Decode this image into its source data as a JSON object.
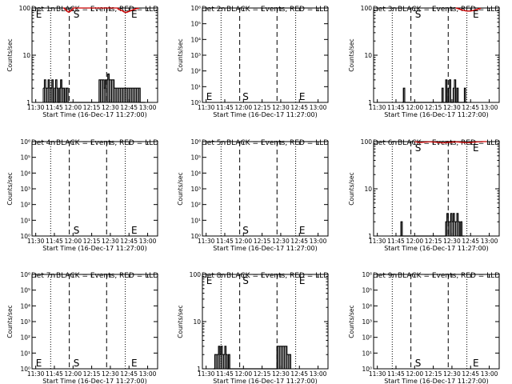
{
  "panels": [
    {
      "title": "Det 1r BLACK = Events, RED = LLD",
      "ylabel": "Counts/sec",
      "xlabel": "Start Time (16-Dec-17 11:27:00)",
      "ytick_labels": [
        "1",
        "10",
        "100"
      ],
      "xtick_labels": [
        "11:30",
        "11:45",
        "12:00",
        "12:15",
        "12:30",
        "12:45",
        "13:00"
      ],
      "markers": [
        "E",
        "S",
        "E"
      ]
    },
    {
      "title": "Det 2r BLACK = Events, RED = LLD",
      "ylabel": "Counts/sec",
      "xlabel": "Start Time (16-Dec-17 11:27:00)",
      "ytick_labels": [
        "10⁰",
        "10¹",
        "10²",
        "10³",
        "10⁴",
        "10⁵",
        "10⁶"
      ],
      "xtick_labels": [
        "11:30",
        "11:45",
        "12:00",
        "12:15",
        "12:30",
        "12:45",
        "13:00"
      ],
      "markers": [
        "E",
        "S",
        "E"
      ]
    },
    {
      "title": "Det 3r BLACK = Events, RED = LLD",
      "ylabel": "Counts/sec",
      "xlabel": "Start Time (16-Dec-17 11:27:00)",
      "ytick_labels": [
        "1",
        "10",
        "100"
      ],
      "xtick_labels": [
        "11:30",
        "11:45",
        "12:00",
        "12:15",
        "12:30",
        "12:45",
        "13:00"
      ],
      "markers": [
        "S",
        "E"
      ]
    },
    {
      "title": "Det 4r BLACK = Events, RED = LLD",
      "ylabel": "Counts/sec",
      "xlabel": "Start Time (16-Dec-17 11:27:00)",
      "ytick_labels": [
        "10⁰",
        "10¹",
        "10²",
        "10³",
        "10⁴",
        "10⁵",
        "10⁶"
      ],
      "xtick_labels": [
        "11:30",
        "11:45",
        "12:00",
        "12:15",
        "12:30",
        "12:45",
        "13:00"
      ],
      "markers": [
        "S",
        "E"
      ]
    },
    {
      "title": "Det 5r BLACK = Events, RED = LLD",
      "ylabel": "Counts/sec",
      "xlabel": "Start Time (16-Dec-17 11:27:00)",
      "ytick_labels": [
        "10⁰",
        "10¹",
        "10²",
        "10³",
        "10⁴",
        "10⁵",
        "10⁶"
      ],
      "xtick_labels": [
        "11:30",
        "11:45",
        "12:00",
        "12:15",
        "12:30",
        "12:45",
        "13:00"
      ],
      "markers": [
        "S",
        "E"
      ]
    },
    {
      "title": "Det 6r BLACK = Events, RED = LLD",
      "ylabel": "Counts/sec",
      "xlabel": "Start Time (16-Dec-17 11:27:00)",
      "ytick_labels": [
        "1",
        "10",
        "100"
      ],
      "xtick_labels": [
        "11:30",
        "11:45",
        "12:00",
        "12:15",
        "12:30",
        "12:45",
        "13:00"
      ],
      "markers": [
        "S",
        "E"
      ]
    },
    {
      "title": "Det 7r BLACK = Events, RED = LLD",
      "ylabel": "Counts/sec",
      "xlabel": "Start Time (16-Dec-17 11:27:00)",
      "ytick_labels": [
        "10⁰",
        "10¹",
        "10²",
        "10³",
        "10⁴",
        "10⁵",
        "10⁶"
      ],
      "xtick_labels": [
        "11:30",
        "11:45",
        "12:00",
        "12:15",
        "12:30",
        "12:45",
        "13:00"
      ],
      "markers": [
        "E",
        "S",
        "E"
      ]
    },
    {
      "title": "Det 8r BLACK = Events, RED = LLD",
      "ylabel": "Counts/sec",
      "xlabel": "Start Time (16-Dec-17 11:27:00)",
      "ytick_labels": [
        "1",
        "10",
        "100"
      ],
      "xtick_labels": [
        "11:30",
        "11:45",
        "12:00",
        "12:15",
        "12:30",
        "12:45",
        "13:00"
      ],
      "markers": [
        "E",
        "S",
        "E"
      ]
    },
    {
      "title": "Det 9r BLACK = Events, RED = LLD",
      "ylabel": "Counts/sec",
      "xlabel": "Start Time (16-Dec-17 11:27:00)",
      "ytick_labels": [
        "10⁰",
        "10¹",
        "10²",
        "10³",
        "10⁴",
        "10⁵",
        "10⁶"
      ],
      "xtick_labels": [
        "11:30",
        "11:45",
        "12:00",
        "12:15",
        "12:30",
        "12:45",
        "13:00"
      ],
      "markers": [
        "S",
        "E"
      ]
    }
  ],
  "chart_data": [
    {
      "type": "line",
      "title": "Det 1r BLACK = Events, RED = LLD",
      "xlabel": "Start Time (16-Dec-17 11:27:00)",
      "ylabel": "Counts/sec",
      "xlim": [
        "11:27",
        "13:08"
      ],
      "ylim": [
        1,
        100
      ],
      "yscale": "log",
      "series": [
        {
          "color": "#000000",
          "x": [
            "11:36",
            "11:37",
            "11:38",
            "11:39",
            "11:40",
            "11:41",
            "11:42",
            "11:43",
            "11:44",
            "11:45",
            "11:46",
            "11:47",
            "11:48",
            "11:49",
            "11:50",
            "11:51",
            "11:52",
            "11:53",
            "11:54",
            "11:55",
            "11:56",
            "11:57",
            "11:58",
            "11:59",
            "12:00",
            "12:01",
            "12:02",
            "12:03",
            "12:04",
            "12:05",
            "12:06",
            "12:07",
            "12:08",
            "12:09",
            "12:10",
            "12:11",
            "12:12",
            "12:13",
            "12:14",
            "12:15",
            "12:16",
            "12:17",
            "12:18",
            "12:19",
            "12:20",
            "12:21",
            "12:22",
            "12:23",
            "12:24",
            "12:25",
            "12:26",
            "12:27",
            "12:28",
            "12:29",
            "12:30",
            "12:31",
            "12:32",
            "12:33",
            "12:34",
            "12:35",
            "12:36",
            "12:37",
            "12:38",
            "12:39",
            "12:40",
            "12:41",
            "12:42",
            "12:43",
            "12:44",
            "12:45",
            "12:46",
            "12:47",
            "12:48",
            "12:49",
            "12:50",
            "12:51",
            "12:52",
            "12:53",
            "12:54",
            "12:55",
            "12:56",
            "12:57",
            "12:58"
          ],
          "y": [
            2,
            3,
            2,
            2,
            3,
            2,
            2,
            3,
            1,
            2,
            3,
            2,
            1,
            2,
            3,
            2,
            2,
            1,
            2,
            2,
            1,
            1,
            1,
            1,
            1,
            1,
            1,
            1,
            1,
            1,
            1,
            1,
            1,
            1,
            1,
            1,
            1,
            1,
            1,
            1,
            1,
            1,
            1,
            1,
            1,
            3,
            3,
            3,
            3,
            2,
            3,
            3,
            4,
            3,
            3,
            3,
            3,
            2,
            2,
            2,
            2,
            2,
            2,
            2,
            2,
            2,
            2,
            2,
            2,
            2,
            2,
            2,
            2,
            2,
            2,
            2,
            2,
            2,
            1,
            1,
            1,
            1,
            1
          ]
        },
        {
          "color": "#cc0000",
          "x": [
            "11:52",
            "11:53",
            "11:54",
            "11:55",
            "11:56",
            "11:57",
            "11:58",
            "11:59",
            "12:00",
            "12:35",
            "12:36",
            "12:37",
            "12:38",
            "12:39",
            "12:40",
            "12:41",
            "12:42",
            "12:43",
            "12:44",
            "12:45",
            "12:46",
            "12:47",
            "12:48",
            "12:49",
            "12:50",
            "12:51",
            "12:52",
            "12:53"
          ],
          "y": [
            100,
            95,
            90,
            85,
            82,
            85,
            88,
            93,
            100,
            100,
            95,
            92,
            90,
            88,
            85,
            82,
            80,
            82,
            84,
            86,
            88,
            90,
            92,
            94,
            96,
            98,
            99,
            100
          ]
        }
      ]
    },
    {
      "type": "line",
      "title": "Det 2r BLACK = Events, RED = LLD",
      "xlabel": "Start Time (16-Dec-17 11:27:00)",
      "ylabel": "Counts/sec",
      "xlim": [
        "11:27",
        "13:08"
      ],
      "ylim": [
        1,
        1000000
      ],
      "yscale": "log",
      "series": []
    },
    {
      "type": "line",
      "title": "Det 3r BLACK = Events, RED = LLD",
      "xlabel": "Start Time (16-Dec-17 11:27:00)",
      "ylabel": "Counts/sec",
      "xlim": [
        "11:27",
        "13:08"
      ],
      "ylim": [
        1,
        100
      ],
      "yscale": "log",
      "series": [
        {
          "color": "#000000",
          "x": [
            "11:50",
            "11:51",
            "11:52",
            "11:53",
            "11:54",
            "11:55",
            "11:56",
            "11:57",
            "11:58",
            "11:59",
            "12:00",
            "12:01",
            "12:02",
            "12:03",
            "12:04",
            "12:05",
            "12:06",
            "12:07",
            "12:08",
            "12:09",
            "12:10",
            "12:11",
            "12:12",
            "12:13",
            "12:14",
            "12:15",
            "12:16",
            "12:17",
            "12:18",
            "12:19",
            "12:20",
            "12:21",
            "12:22",
            "12:23",
            "12:24",
            "12:25",
            "12:26",
            "12:27",
            "12:28",
            "12:29",
            "12:30",
            "12:31",
            "12:32",
            "12:33",
            "12:34",
            "12:35",
            "12:36",
            "12:37",
            "12:38",
            "12:39",
            "12:40",
            "12:41",
            "12:42"
          ],
          "y": [
            1,
            2,
            1,
            1,
            1,
            1,
            1,
            1,
            1,
            1,
            1,
            1,
            1,
            1,
            1,
            1,
            1,
            1,
            1,
            1,
            1,
            1,
            1,
            1,
            1,
            1,
            1,
            1,
            1,
            1,
            1,
            1,
            2,
            1,
            1,
            3,
            1,
            2,
            3,
            1,
            1,
            2,
            3,
            1,
            2,
            1,
            1,
            1,
            1,
            1,
            2,
            1,
            1
          ]
        },
        {
          "color": "#cc0000",
          "x": [
            "12:33",
            "12:34",
            "12:35",
            "12:36",
            "12:37",
            "12:38",
            "12:39",
            "12:40",
            "12:41",
            "12:42",
            "12:43",
            "12:44",
            "12:45",
            "12:46",
            "12:47",
            "12:48",
            "12:49",
            "12:50",
            "12:51",
            "12:52",
            "12:53"
          ],
          "y": [
            100,
            98,
            96,
            94,
            92,
            90,
            89,
            88,
            87,
            86,
            86,
            86,
            87,
            88,
            89,
            90,
            92,
            94,
            96,
            98,
            100
          ]
        }
      ]
    },
    {
      "type": "line",
      "title": "Det 4r BLACK = Events, RED = LLD",
      "xlabel": "Start Time (16-Dec-17 11:27:00)",
      "ylabel": "Counts/sec",
      "xlim": [
        "11:27",
        "13:08"
      ],
      "ylim": [
        1,
        1000000
      ],
      "yscale": "log",
      "series": []
    },
    {
      "type": "line",
      "title": "Det 5r BLACK = Events, RED = LLD",
      "xlabel": "Start Time (16-Dec-17 11:27:00)",
      "ylabel": "Counts/sec",
      "xlim": [
        "11:27",
        "13:08"
      ],
      "ylim": [
        1,
        1000000
      ],
      "yscale": "log",
      "series": []
    },
    {
      "type": "line",
      "title": "Det 6r BLACK = Events, RED = LLD",
      "xlabel": "Start Time (16-Dec-17 11:27:00)",
      "ylabel": "Counts/sec",
      "xlim": [
        "11:27",
        "13:08"
      ],
      "ylim": [
        1,
        100
      ],
      "yscale": "log",
      "series": [
        {
          "color": "#000000",
          "x": [
            "11:48",
            "11:49",
            "11:50",
            "11:51",
            "11:52",
            "11:53",
            "11:54",
            "11:55",
            "11:56",
            "11:57",
            "11:58",
            "11:59",
            "12:00",
            "12:01",
            "12:02",
            "12:03",
            "12:04",
            "12:05",
            "12:06",
            "12:07",
            "12:08",
            "12:09",
            "12:10",
            "12:11",
            "12:12",
            "12:13",
            "12:14",
            "12:15",
            "12:16",
            "12:17",
            "12:18",
            "12:19",
            "12:20",
            "12:21",
            "12:22",
            "12:23",
            "12:24",
            "12:25",
            "12:26",
            "12:27",
            "12:28",
            "12:29",
            "12:30",
            "12:31",
            "12:32",
            "12:33",
            "12:34",
            "12:35",
            "12:36",
            "12:37",
            "12:38",
            "12:39",
            "12:40"
          ],
          "y": [
            1,
            2,
            1,
            1,
            1,
            1,
            1,
            1,
            1,
            1,
            1,
            1,
            1,
            1,
            1,
            1,
            1,
            1,
            1,
            1,
            1,
            1,
            1,
            1,
            1,
            1,
            1,
            1,
            1,
            1,
            1,
            1,
            1,
            1,
            1,
            1,
            1,
            2,
            3,
            2,
            2,
            3,
            2,
            3,
            2,
            2,
            3,
            2,
            1,
            2,
            1,
            1,
            1
          ]
        },
        {
          "color": "#cc0000",
          "x": [
            "12:00",
            "12:02",
            "12:04",
            "12:06",
            "12:08",
            "12:10",
            "12:12",
            "12:14",
            "12:16",
            "12:18",
            "12:20",
            "12:22",
            "12:24",
            "12:26",
            "12:28",
            "12:30",
            "12:32",
            "12:34",
            "12:36",
            "12:38",
            "12:40",
            "12:42",
            "12:44",
            "12:46",
            "12:48",
            "12:50",
            "12:52",
            "12:54",
            "12:56",
            "12:58"
          ],
          "y": [
            99,
            97,
            96,
            97,
            98,
            99,
            99,
            98,
            97,
            96,
            95,
            94,
            95,
            96,
            97,
            98,
            99,
            98,
            97,
            96,
            95,
            95,
            96,
            97,
            98,
            99,
            99,
            100,
            100,
            100
          ]
        }
      ]
    },
    {
      "type": "line",
      "title": "Det 7r BLACK = Events, RED = LLD",
      "xlabel": "Start Time (16-Dec-17 11:27:00)",
      "ylabel": "Counts/sec",
      "xlim": [
        "11:27",
        "13:08"
      ],
      "ylim": [
        1,
        1000000
      ],
      "yscale": "log",
      "series": []
    },
    {
      "type": "line",
      "title": "Det 8r BLACK = Events, RED = LLD",
      "xlabel": "Start Time (16-Dec-17 11:27:00)",
      "ylabel": "Counts/sec",
      "xlim": [
        "11:27",
        "13:08"
      ],
      "ylim": [
        1,
        100
      ],
      "yscale": "log",
      "series": [
        {
          "color": "#000000",
          "x": [
            "11:36",
            "11:37",
            "11:38",
            "11:39",
            "11:40",
            "11:41",
            "11:42",
            "11:43",
            "11:44",
            "11:45",
            "11:46",
            "11:47",
            "11:48",
            "11:49",
            "11:50",
            "11:51",
            "11:52",
            "11:53",
            "11:54",
            "11:55",
            "11:56",
            "11:57",
            "11:58",
            "11:59",
            "12:00",
            "12:01",
            "12:02",
            "12:03",
            "12:04",
            "12:05",
            "12:06",
            "12:07",
            "12:08",
            "12:09",
            "12:10",
            "12:11",
            "12:12",
            "12:13",
            "12:14",
            "12:15",
            "12:16",
            "12:17",
            "12:18",
            "12:19",
            "12:20",
            "12:21",
            "12:22",
            "12:23",
            "12:24",
            "12:25",
            "12:26",
            "12:27",
            "12:28",
            "12:29",
            "12:30",
            "12:31",
            "12:32",
            "12:33",
            "12:34",
            "12:35",
            "12:36",
            "12:37",
            "12:38"
          ],
          "y": [
            1,
            2,
            2,
            2,
            3,
            2,
            3,
            2,
            2,
            3,
            2,
            1,
            2,
            1,
            1,
            1,
            1,
            1,
            1,
            1,
            1,
            1,
            1,
            1,
            1,
            1,
            1,
            1,
            1,
            1,
            1,
            1,
            1,
            1,
            1,
            1,
            1,
            1,
            1,
            1,
            1,
            1,
            1,
            1,
            1,
            1,
            1,
            1,
            1,
            1,
            1,
            3,
            3,
            3,
            3,
            3,
            3,
            3,
            3,
            2,
            2,
            2,
            1
          ]
        }
      ]
    },
    {
      "type": "line",
      "title": "Det 9r BLACK = Events, RED = LLD",
      "xlabel": "Start Time (16-Dec-17 11:27:00)",
      "ylabel": "Counts/sec",
      "xlim": [
        "11:27",
        "13:08"
      ],
      "ylim": [
        1,
        1000000
      ],
      "yscale": "log",
      "series": []
    }
  ]
}
